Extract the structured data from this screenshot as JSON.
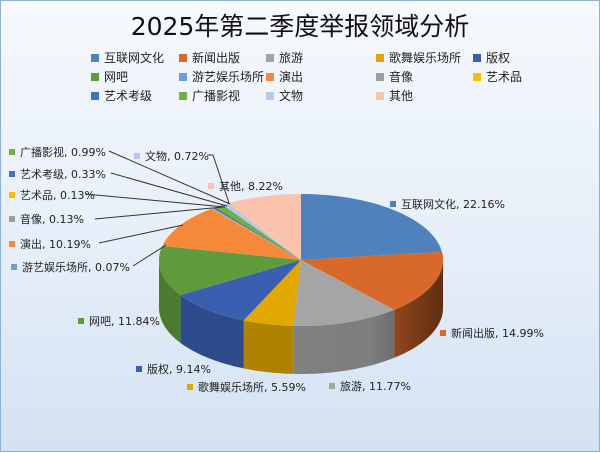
{
  "chart_data": {
    "type": "pie",
    "style": "3d",
    "title": "2025年第二季度举报领域分析",
    "legend_position": "top",
    "categories": [
      "互联网文化",
      "新闻出版",
      "旅游",
      "歌舞娱乐场所",
      "版权",
      "网吧",
      "游艺娱乐场所",
      "演出",
      "音像",
      "艺术品",
      "艺术考级",
      "广播影视",
      "文物",
      "其他"
    ],
    "values": [
      22.16,
      14.99,
      11.77,
      5.59,
      9.14,
      11.84,
      0.07,
      10.19,
      0.13,
      0.13,
      0.33,
      0.99,
      0.72,
      8.22
    ],
    "data_labels": [
      "互联网文化, 22.16%",
      "新闻出版, 14.99%",
      "旅游, 11.77%",
      "歌舞娱乐场所, 5.59%",
      "版权, 9.14%",
      "网吧, 11.84%",
      "游艺娱乐场所, 0.07%",
      "演出, 10.19%",
      "音像, 0.13%",
      "艺术品, 0.13%",
      "艺术考级, 0.33%",
      "广播影视, 0.99%",
      "文物, 0.72%",
      "其他, 8.22%"
    ],
    "colors": [
      "#4f81bd",
      "#d9692a",
      "#a5a5a5",
      "#e0a800",
      "#3a5fb0",
      "#5f9a3c",
      "#6a9fd8",
      "#f6883a",
      "#9e9e9e",
      "#f5c000",
      "#4472c4",
      "#6fae48",
      "#b6c9e6",
      "#f9c3ae"
    ]
  }
}
